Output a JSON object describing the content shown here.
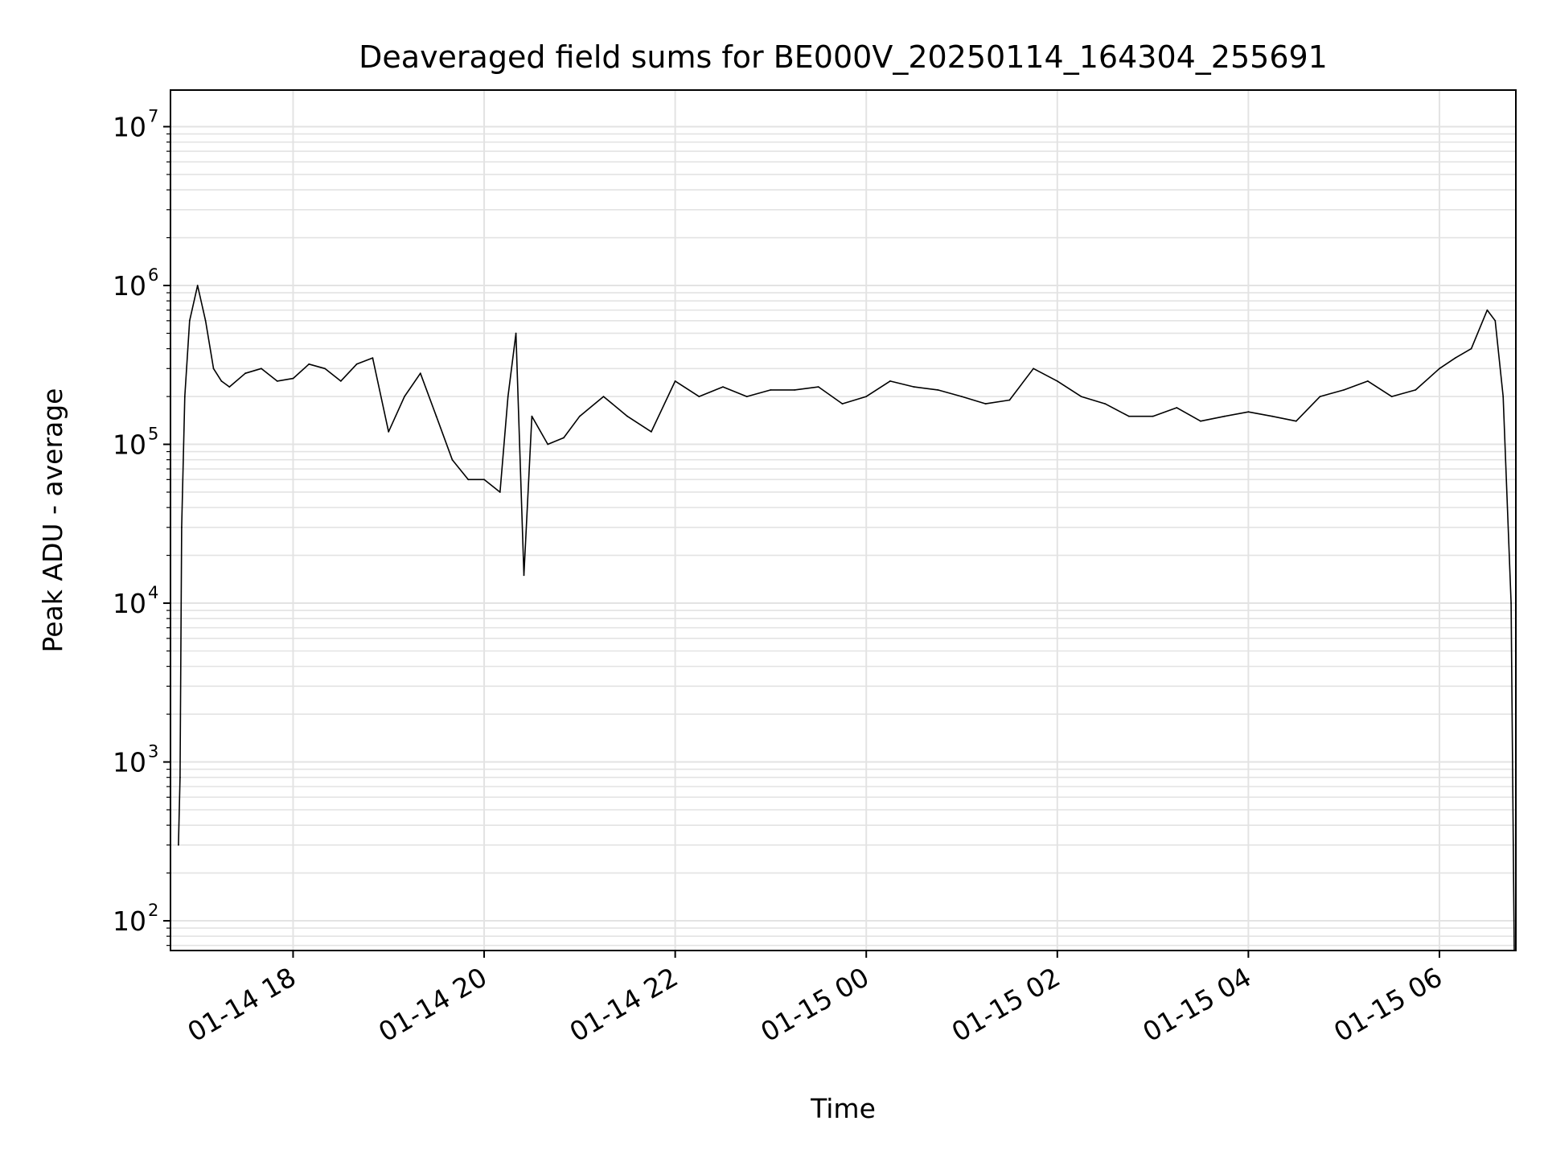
{
  "chart_data": {
    "type": "line",
    "title": "Deaveraged field sums for BE000V_20250114_164304_255691",
    "xlabel": "Time",
    "ylabel": "Peak ADU - average",
    "yscale": "log",
    "ylim": [
      65,
      17000000
    ],
    "xlim": [
      "2025-01-14 16:43",
      "2025-01-15 06:48"
    ],
    "grid": true,
    "grid_minor": true,
    "line_color": "#000000",
    "grid_color": "#e3e3e3",
    "x_ticks": [
      {
        "value": "2025-01-14 18:00",
        "label": "01-14 18"
      },
      {
        "value": "2025-01-14 20:00",
        "label": "01-14 20"
      },
      {
        "value": "2025-01-14 22:00",
        "label": "01-14 22"
      },
      {
        "value": "2025-01-15 00:00",
        "label": "01-15 00"
      },
      {
        "value": "2025-01-15 02:00",
        "label": "01-15 02"
      },
      {
        "value": "2025-01-15 04:00",
        "label": "01-15 04"
      },
      {
        "value": "2025-01-15 06:00",
        "label": "01-15 06"
      }
    ],
    "y_ticks": [
      {
        "value": 100,
        "base": "10",
        "exp": "2"
      },
      {
        "value": 1000,
        "base": "10",
        "exp": "3"
      },
      {
        "value": 10000,
        "base": "10",
        "exp": "4"
      },
      {
        "value": 100000,
        "base": "10",
        "exp": "5"
      },
      {
        "value": 1000000,
        "base": "10",
        "exp": "6"
      },
      {
        "value": 10000000,
        "base": "10",
        "exp": "7"
      }
    ],
    "series": [
      {
        "x": [
          "2025-01-14 16:48",
          "2025-01-14 16:49",
          "2025-01-14 16:50",
          "2025-01-14 16:52",
          "2025-01-14 16:55",
          "2025-01-14 17:00",
          "2025-01-14 17:05",
          "2025-01-14 17:10",
          "2025-01-14 17:15",
          "2025-01-14 17:20",
          "2025-01-14 17:30",
          "2025-01-14 17:40",
          "2025-01-14 17:50",
          "2025-01-14 18:00",
          "2025-01-14 18:10",
          "2025-01-14 18:20",
          "2025-01-14 18:30",
          "2025-01-14 18:40",
          "2025-01-14 18:50",
          "2025-01-14 19:00",
          "2025-01-14 19:10",
          "2025-01-14 19:20",
          "2025-01-14 19:30",
          "2025-01-14 19:40",
          "2025-01-14 19:50",
          "2025-01-14 20:00",
          "2025-01-14 20:10",
          "2025-01-14 20:15",
          "2025-01-14 20:20",
          "2025-01-14 20:25",
          "2025-01-14 20:30",
          "2025-01-14 20:40",
          "2025-01-14 20:50",
          "2025-01-14 21:00",
          "2025-01-14 21:15",
          "2025-01-14 21:30",
          "2025-01-14 21:45",
          "2025-01-14 22:00",
          "2025-01-14 22:15",
          "2025-01-14 22:30",
          "2025-01-14 22:45",
          "2025-01-14 23:00",
          "2025-01-14 23:15",
          "2025-01-14 23:30",
          "2025-01-14 23:45",
          "2025-01-15 00:00",
          "2025-01-15 00:15",
          "2025-01-15 00:30",
          "2025-01-15 00:45",
          "2025-01-15 01:00",
          "2025-01-15 01:15",
          "2025-01-15 01:30",
          "2025-01-15 01:45",
          "2025-01-15 02:00",
          "2025-01-15 02:15",
          "2025-01-15 02:30",
          "2025-01-15 02:45",
          "2025-01-15 03:00",
          "2025-01-15 03:15",
          "2025-01-15 03:30",
          "2025-01-15 03:45",
          "2025-01-15 04:00",
          "2025-01-15 04:15",
          "2025-01-15 04:30",
          "2025-01-15 04:45",
          "2025-01-15 05:00",
          "2025-01-15 05:15",
          "2025-01-15 05:30",
          "2025-01-15 05:45",
          "2025-01-15 06:00",
          "2025-01-15 06:10",
          "2025-01-15 06:20",
          "2025-01-15 06:30",
          "2025-01-15 06:35",
          "2025-01-15 06:40",
          "2025-01-15 06:45",
          "2025-01-15 06:47"
        ],
        "values": [
          300,
          800,
          30000,
          200000,
          600000,
          1000000,
          600000,
          300000,
          250000,
          230000,
          280000,
          300000,
          250000,
          260000,
          320000,
          300000,
          250000,
          320000,
          350000,
          120000,
          200000,
          280000,
          150000,
          80000,
          60000,
          60000,
          50000,
          200000,
          500000,
          15000,
          150000,
          100000,
          110000,
          150000,
          200000,
          150000,
          120000,
          250000,
          200000,
          230000,
          200000,
          220000,
          220000,
          230000,
          180000,
          200000,
          250000,
          230000,
          220000,
          200000,
          180000,
          190000,
          300000,
          250000,
          200000,
          180000,
          150000,
          150000,
          170000,
          140000,
          150000,
          160000,
          150000,
          140000,
          200000,
          220000,
          250000,
          200000,
          220000,
          300000,
          350000,
          400000,
          700000,
          600000,
          200000,
          10000,
          65
        ]
      }
    ]
  }
}
